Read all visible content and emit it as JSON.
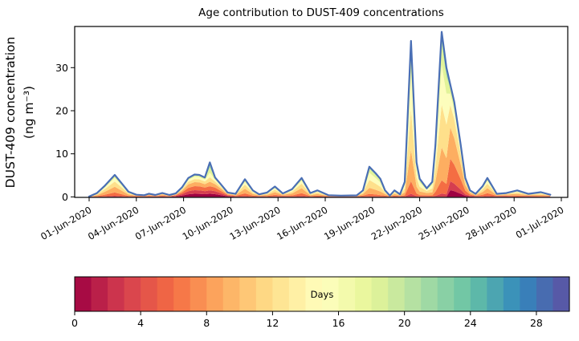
{
  "figure": {
    "title": "Age contribution to DUST-409 concentrations",
    "ylabel_line1": "DUST-409 concentration",
    "ylabel_line2": "(ng m⁻³)"
  },
  "chart_data": {
    "type": "area",
    "subtype": "stacked-area-age-spectrum",
    "title": "Age contribution to DUST-409 concentrations",
    "xlabel": "",
    "ylabel": "DUST-409 concentration (ng m⁻³)",
    "grid": false,
    "x_unit": "days since 01-Jun-2020",
    "xlim_days": [
      -0.9,
      30.4
    ],
    "ylim": [
      0,
      39.5
    ],
    "y_ticks": [
      0,
      10,
      20,
      30
    ],
    "x_tick_days": [
      0,
      3,
      6,
      9,
      12,
      15,
      18,
      21,
      24,
      27,
      30
    ],
    "x_tick_labels": [
      "01-Jun-2020",
      "04-Jun-2020",
      "07-Jun-2020",
      "10-Jun-2020",
      "13-Jun-2020",
      "16-Jun-2020",
      "19-Jun-2020",
      "22-Jun-2020",
      "25-Jun-2020",
      "28-Jun-2020",
      "01-Jul-2020"
    ],
    "outline_color": "#4a6fb5",
    "total_series": {
      "name": "Total DUST-409 concentration",
      "x_days": [
        0.0,
        0.5,
        1.0,
        1.63,
        2.1,
        2.5,
        3.0,
        3.5,
        3.8,
        4.2,
        4.65,
        5.1,
        5.5,
        5.9,
        6.3,
        6.7,
        7.0,
        7.35,
        7.67,
        8.0,
        8.35,
        8.8,
        9.3,
        9.9,
        10.4,
        10.8,
        11.3,
        11.8,
        12.3,
        12.9,
        13.5,
        14.05,
        14.5,
        15.2,
        16.0,
        17.0,
        17.4,
        17.8,
        18.2,
        18.5,
        18.8,
        19.1,
        19.4,
        19.75,
        20.05,
        20.45,
        20.8,
        21.0,
        21.45,
        21.8,
        22.0,
        22.4,
        22.7,
        22.95,
        23.2,
        23.6,
        23.9,
        24.2,
        24.55,
        25.0,
        25.3,
        25.9,
        26.5,
        27.2,
        27.9,
        28.7,
        29.3
      ],
      "values": [
        0.1,
        0.9,
        2.6,
        5.1,
        3.0,
        1.2,
        0.5,
        0.4,
        0.75,
        0.45,
        0.9,
        0.45,
        0.8,
        2.2,
        4.4,
        5.2,
        5.1,
        4.5,
        8.0,
        4.5,
        3.0,
        1.0,
        0.7,
        4.1,
        1.5,
        0.6,
        1.0,
        2.4,
        0.8,
        1.8,
        4.4,
        0.9,
        1.5,
        0.4,
        0.3,
        0.35,
        1.5,
        7.0,
        5.5,
        4.2,
        1.5,
        0.3,
        1.5,
        0.6,
        3.5,
        36.2,
        8.0,
        4.2,
        2.0,
        3.5,
        12.0,
        38.3,
        30.0,
        26.0,
        22.0,
        12.2,
        4.4,
        1.5,
        0.7,
        2.5,
        4.4,
        0.7,
        0.9,
        1.5,
        0.7,
        1.1,
        0.5
      ]
    },
    "age_layers": {
      "description": "stack of contributions by air age, youngest (dark red) at bottom to oldest (green/blue) at top",
      "colors": [
        "#9e0142",
        "#d53e4f",
        "#f46d43",
        "#fdae61",
        "#fee08b",
        "#fdfdbc",
        "#e2f398",
        "#addfa4"
      ],
      "profile_order": [
        "young",
        "mid",
        "pale",
        "shoulder",
        "base",
        "spike"
      ],
      "profile_boundaries": {
        "young": [
          0.14,
          0.3,
          0.48,
          0.66,
          0.8,
          0.9,
          0.96
        ],
        "mid": [
          0.0,
          0.05,
          0.2,
          0.46,
          0.7,
          0.86,
          0.95
        ],
        "pale": [
          0.0,
          0.02,
          0.1,
          0.3,
          0.56,
          0.8,
          0.93
        ],
        "shoulder": [
          0.06,
          0.14,
          0.34,
          0.62,
          0.82,
          0.92,
          0.97
        ],
        "base": [
          0.06,
          0.16,
          0.36,
          0.62,
          0.8,
          0.91,
          0.96
        ],
        "spike": [
          0.09,
          0.19,
          0.31,
          0.44,
          0.57,
          0.7,
          0.85
        ]
      },
      "point_profiles": [
        4,
        1,
        1,
        1,
        1,
        1,
        4,
        4,
        4,
        4,
        4,
        4,
        0,
        0,
        0,
        0,
        0,
        0,
        5,
        0,
        0,
        0,
        4,
        1,
        1,
        4,
        1,
        1,
        4,
        1,
        1,
        1,
        1,
        4,
        4,
        4,
        1,
        2,
        2,
        2,
        1,
        4,
        1,
        4,
        2,
        2,
        2,
        2,
        1,
        2,
        2,
        2,
        2,
        3,
        3,
        3,
        3,
        4,
        4,
        1,
        1,
        4,
        4,
        1,
        4,
        1,
        4
      ]
    },
    "colorbar": {
      "label": "Days",
      "min": 0,
      "max": 30,
      "segments": 30,
      "ticks": [
        0,
        4,
        8,
        12,
        16,
        20,
        24,
        28
      ],
      "colormap": "Spectral",
      "anchors": [
        "#9e0142",
        "#d53e4f",
        "#f46d43",
        "#fdae61",
        "#fee08b",
        "#ffffbf",
        "#e6f598",
        "#abdda4",
        "#66c2a5",
        "#3288bd",
        "#5e4fa2"
      ]
    }
  }
}
